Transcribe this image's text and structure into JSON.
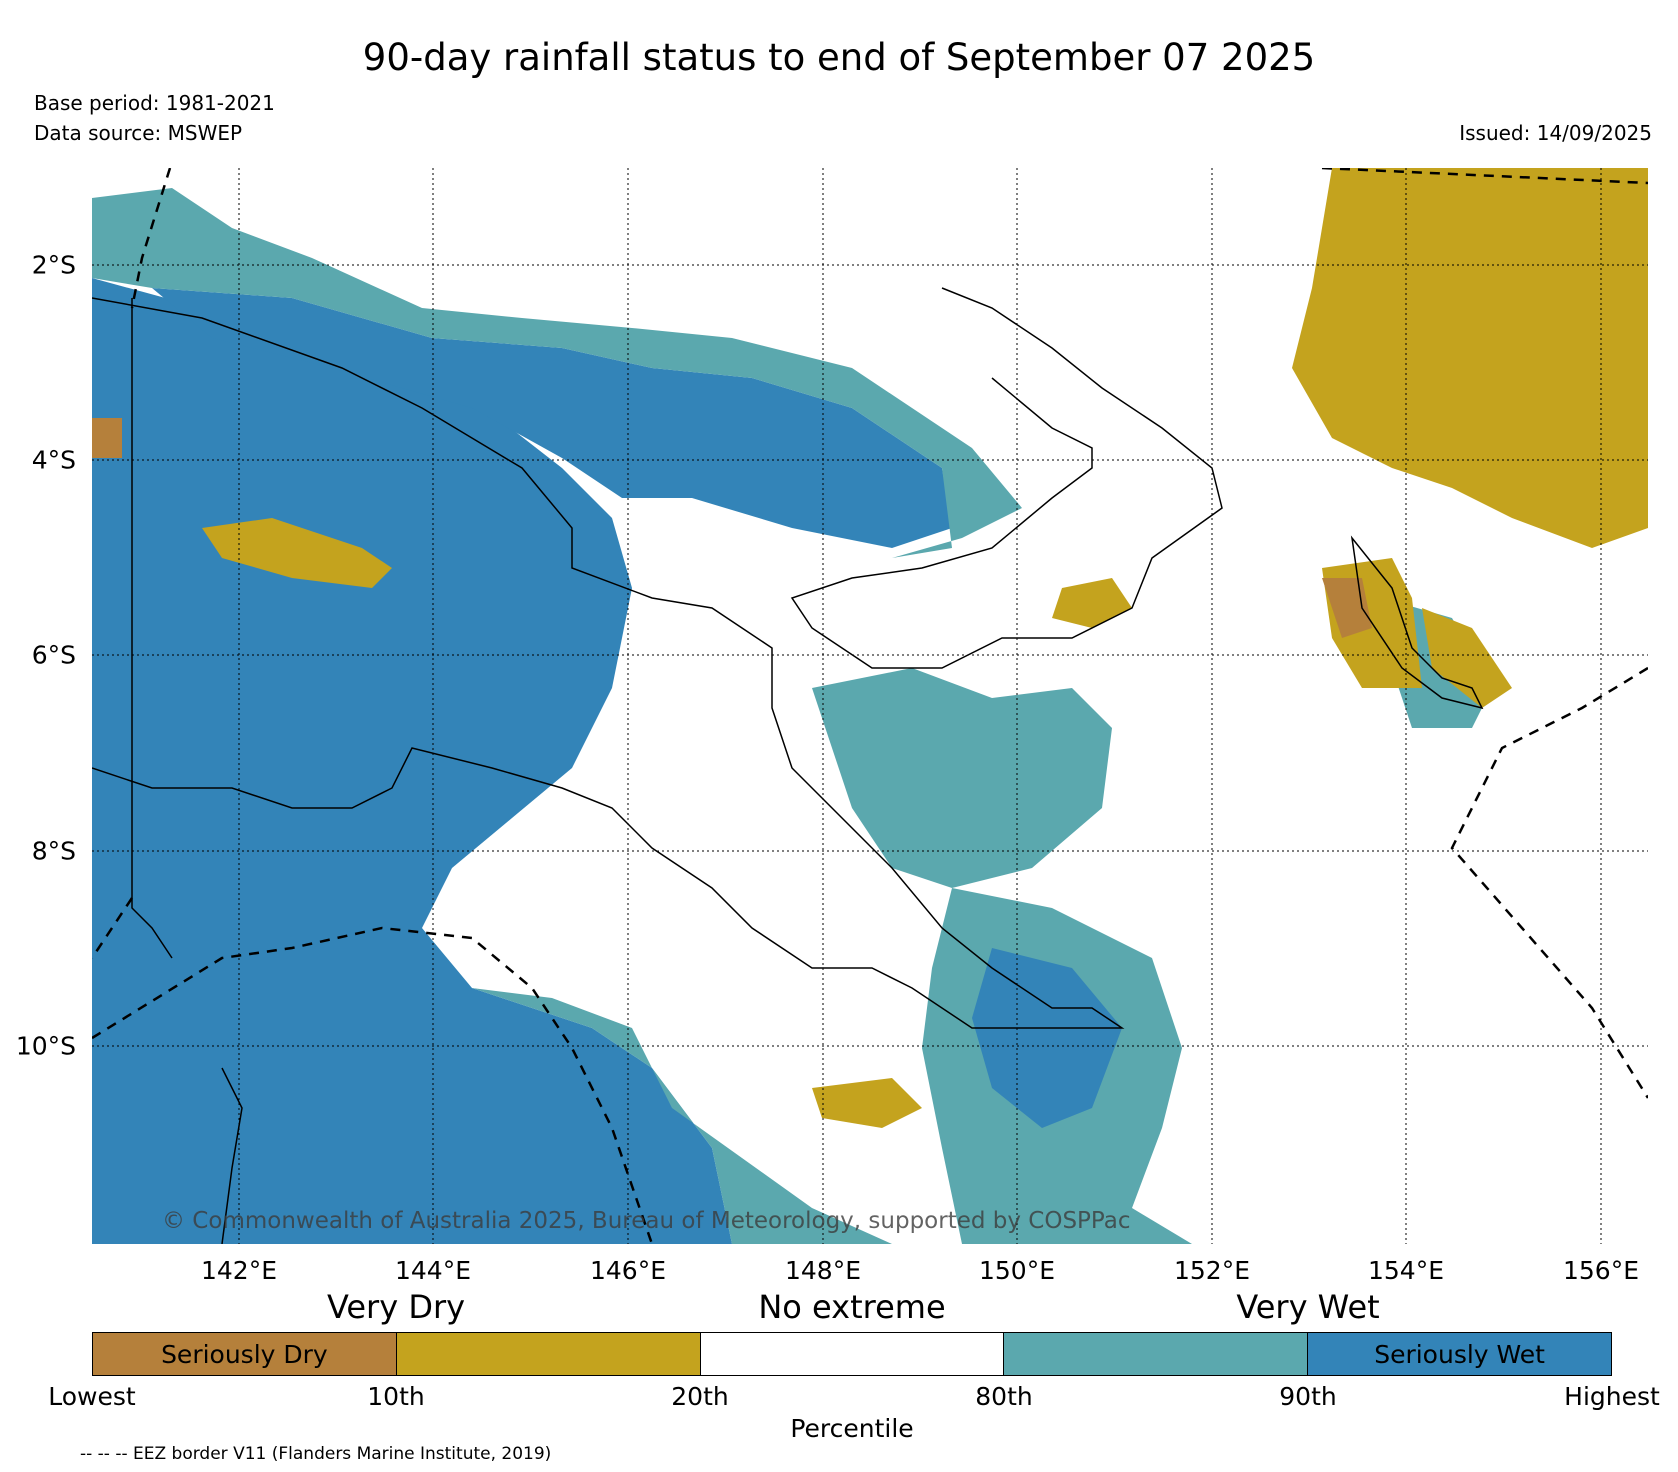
{
  "header": {
    "title": "90-day rainfall status to end of September 07 2025",
    "base_period": "Base period: 1981-2021",
    "data_source": "Data source: MSWEP",
    "issued": "Issued: 14/09/2025"
  },
  "map": {
    "lat_labels": [
      "2°S",
      "4°S",
      "6°S",
      "8°S",
      "10°S"
    ],
    "lon_labels": [
      "142°E",
      "144°E",
      "146°E",
      "148°E",
      "150°E",
      "152°E",
      "154°E",
      "156°E"
    ],
    "copyright": "© Commonwealth of Australia 2025, Bureau of Meteorology, supported by COSPPac",
    "colors": {
      "seriously_dry": "#b5803b",
      "very_dry": "#c4a31e",
      "no_extreme": "#ffffff",
      "very_wet": "#5ba8ae",
      "seriously_wet": "#3384b8"
    }
  },
  "legend": {
    "groups": [
      "Very Dry",
      "No extreme",
      "Very Wet"
    ],
    "segments": [
      {
        "label": "Seriously Dry",
        "color": "#b5803b"
      },
      {
        "label": "",
        "color": "#c4a31e"
      },
      {
        "label": "",
        "color": "#ffffff"
      },
      {
        "label": "",
        "color": "#5ba8ae"
      },
      {
        "label": "Seriously Wet",
        "color": "#3384b8"
      }
    ],
    "ticks": [
      "Lowest",
      "10th",
      "20th",
      "80th",
      "90th",
      "Highest"
    ],
    "axis_label": "Percentile"
  },
  "footer": {
    "eez_note": "-- -- -- EEZ border V11 (Flanders Marine Institute, 2019)"
  }
}
